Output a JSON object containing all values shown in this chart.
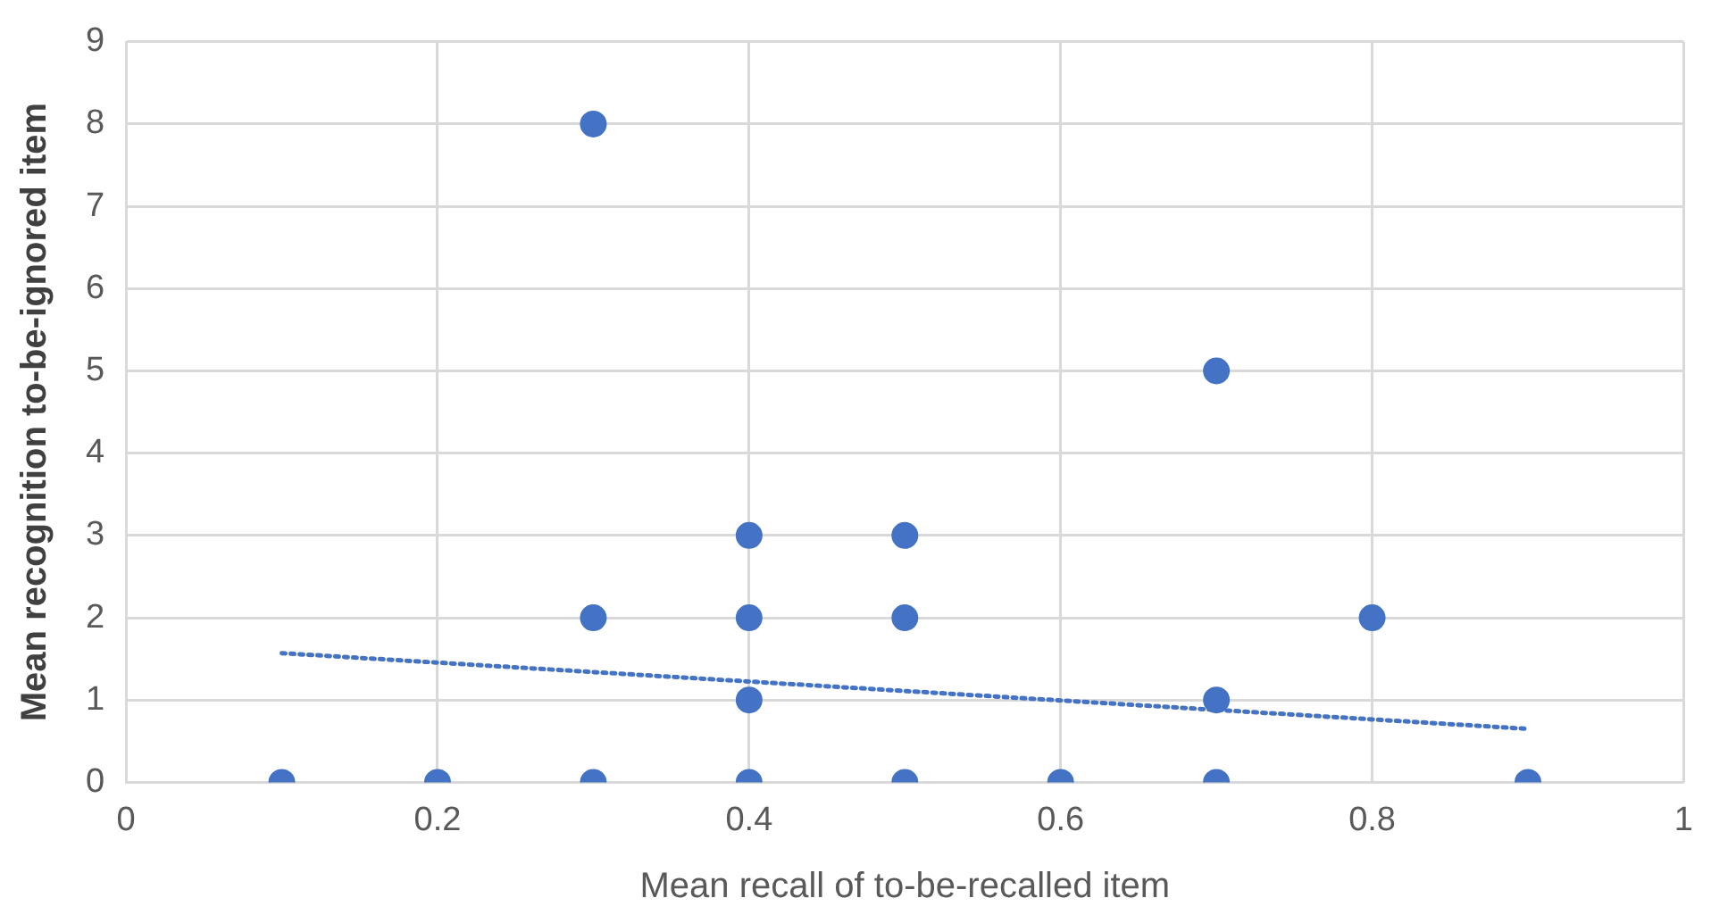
{
  "chart_data": {
    "type": "scatter",
    "xlabel": "Mean recall of to-be-recalled item",
    "ylabel": "Mean recognition to-be-ignored item",
    "xlim": [
      0,
      1
    ],
    "xticks": [
      0,
      0.2,
      0.4,
      0.6,
      0.8,
      1
    ],
    "ylim": [
      0,
      9
    ],
    "yticks": [
      0,
      1,
      2,
      3,
      4,
      5,
      6,
      7,
      8,
      9
    ],
    "grid": true,
    "legend": false,
    "marker": "circle",
    "series": [
      {
        "color": "#4472c4",
        "x": [
          0.1,
          0.2,
          0.3,
          0.3,
          0.3,
          0.4,
          0.4,
          0.4,
          0.4,
          0.5,
          0.5,
          0.5,
          0.6,
          0.7,
          0.7,
          0.7,
          0.8,
          0.9
        ],
        "values": [
          0,
          0,
          0,
          2,
          8,
          0,
          1,
          2,
          3,
          0,
          2,
          3,
          0,
          0,
          1,
          5,
          2,
          0
        ]
      },
      {
        "type": "line",
        "color": "#4472c4",
        "line_style": "dotted",
        "marker": "none",
        "x": [
          0.1,
          0.9
        ],
        "values": [
          1.57,
          0.65
        ]
      }
    ]
  }
}
